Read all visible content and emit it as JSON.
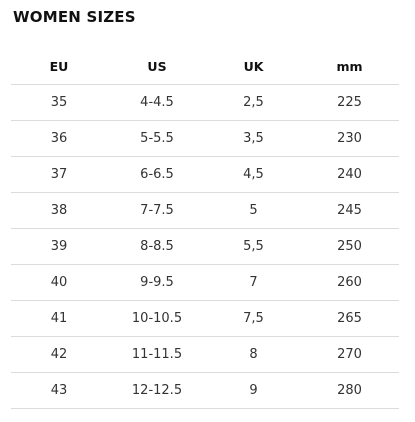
{
  "title": "WOMEN SIZES",
  "columns": [
    "EU",
    "US",
    "UK",
    "mm"
  ],
  "rows": [
    [
      "35",
      "4-4.5",
      "2,5",
      "225"
    ],
    [
      "36",
      "5-5.5",
      "3,5",
      "230"
    ],
    [
      "37",
      "6-6.5",
      "4,5",
      "240"
    ],
    [
      "38",
      "7-7.5",
      "5",
      "245"
    ],
    [
      "39",
      "8-8.5",
      "5,5",
      "250"
    ],
    [
      "40",
      "9-9.5",
      "7",
      "260"
    ],
    [
      "41",
      "10-10.5",
      "7,5",
      "265"
    ],
    [
      "42",
      "11-11.5",
      "8",
      "270"
    ],
    [
      "43",
      "12-12.5",
      "9",
      "280"
    ]
  ]
}
